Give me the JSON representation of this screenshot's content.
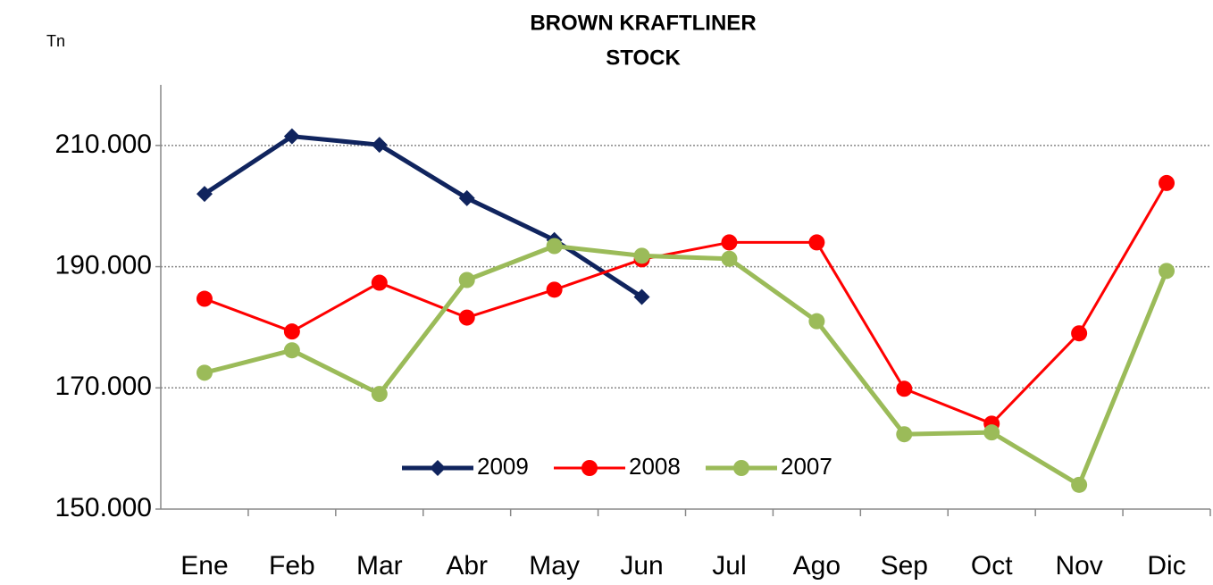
{
  "chart_data": {
    "type": "line",
    "title": [
      "BROWN KRAFTLINER",
      "STOCK"
    ],
    "y_label": "Tn",
    "categories": [
      "Ene",
      "Feb",
      "Mar",
      "Abr",
      "May",
      "Jun",
      "Jul",
      "Ago",
      "Sep",
      "Oct",
      "Nov",
      "Dic"
    ],
    "series": [
      {
        "name": "2009",
        "color": "#10245e",
        "marker": "diamond",
        "values": [
          202000,
          211500,
          210100,
          201300,
          194400,
          185000,
          null,
          null,
          null,
          null,
          null,
          null
        ]
      },
      {
        "name": "2008",
        "color": "#ff0000",
        "marker": "circle",
        "values": [
          184700,
          179300,
          187350,
          181600,
          186200,
          191200,
          194000,
          194000,
          169850,
          164100,
          179000,
          203800
        ]
      },
      {
        "name": "2007",
        "color": "#9bbb59",
        "marker": "circle",
        "values": [
          172500,
          176200,
          169000,
          187800,
          193400,
          191800,
          191300,
          181000,
          162350,
          162650,
          154000,
          189300
        ]
      }
    ],
    "ylim": [
      150000,
      220000
    ],
    "yticks": [
      {
        "value": 150000,
        "label": "150.000"
      },
      {
        "value": 170000,
        "label": "170.000"
      },
      {
        "value": 190000,
        "label": "190.000"
      },
      {
        "value": 210000,
        "label": "210.000"
      }
    ],
    "grid": true,
    "legend": "bottom"
  }
}
